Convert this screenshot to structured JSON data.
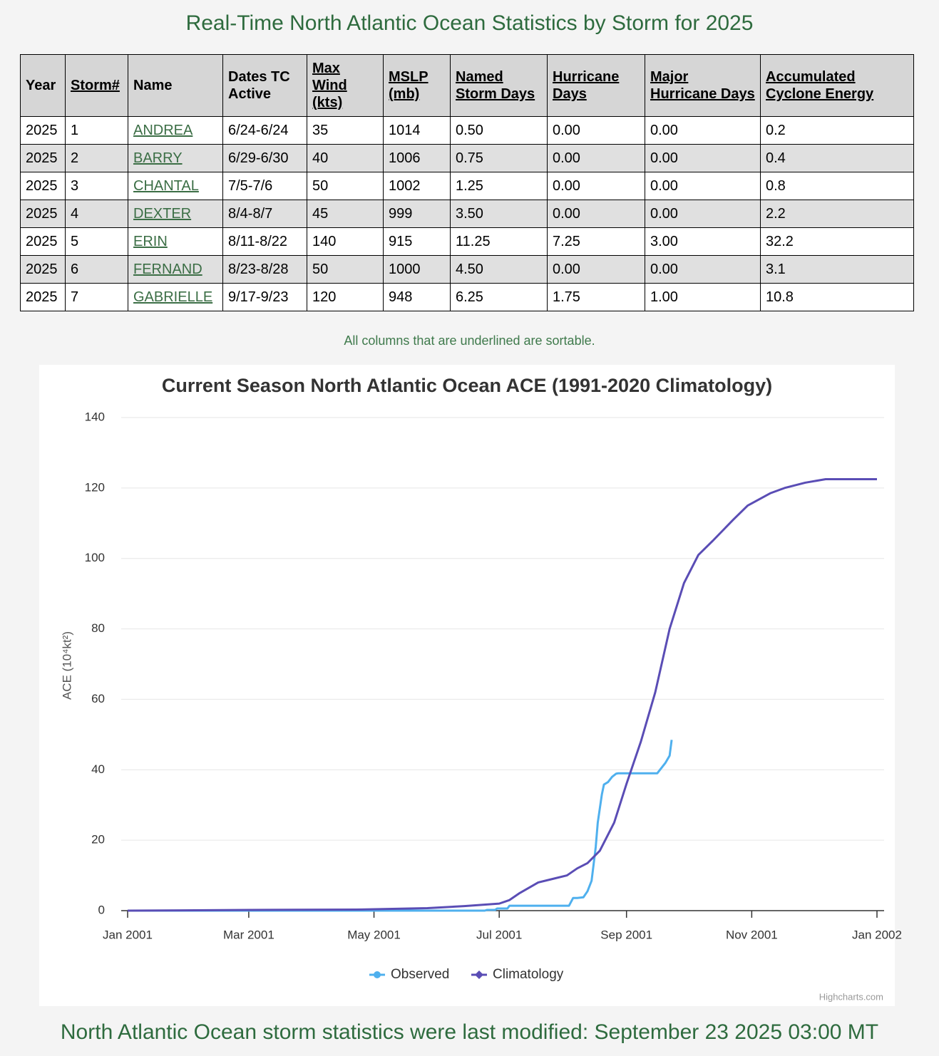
{
  "header": {
    "title": "Real-Time North Atlantic Ocean Statistics by Storm for 2025"
  },
  "table": {
    "columns": [
      "Year",
      "Storm#",
      "Name",
      "Dates TC Active",
      "Max Wind (kts)",
      "MSLP (mb)",
      "Named Storm Days",
      "Hurricane Days",
      "Major Hurricane Days",
      "Accumulated Cyclone Energy"
    ],
    "rows": [
      [
        "2025",
        "1",
        "ANDREA",
        "6/24-6/24",
        "35",
        "1014",
        "0.50",
        "0.00",
        "0.00",
        "0.2"
      ],
      [
        "2025",
        "2",
        "BARRY",
        "6/29-6/30",
        "40",
        "1006",
        "0.75",
        "0.00",
        "0.00",
        "0.4"
      ],
      [
        "2025",
        "3",
        "CHANTAL",
        "7/5-7/6",
        "50",
        "1002",
        "1.25",
        "0.00",
        "0.00",
        "0.8"
      ],
      [
        "2025",
        "4",
        "DEXTER",
        "8/4-8/7",
        "45",
        "999",
        "3.50",
        "0.00",
        "0.00",
        "2.2"
      ],
      [
        "2025",
        "5",
        "ERIN",
        "8/11-8/22",
        "140",
        "915",
        "11.25",
        "7.25",
        "3.00",
        "32.2"
      ],
      [
        "2025",
        "6",
        "FERNAND",
        "8/23-8/28",
        "50",
        "1000",
        "4.50",
        "0.00",
        "0.00",
        "3.1"
      ],
      [
        "2025",
        "7",
        "GABRIELLE",
        "9/17-9/23",
        "120",
        "948",
        "6.25",
        "1.75",
        "1.00",
        "10.8"
      ]
    ]
  },
  "note": "All columns that are underlined are sortable.",
  "chart_data": {
    "type": "line",
    "title": "Current Season North Atlantic Ocean ACE (1991-2020 Climatology)",
    "y_label": "ACE (10⁴kt²)",
    "xlim": [
      0,
      365
    ],
    "xticks": [
      {
        "value": 0,
        "label": "Jan 2001"
      },
      {
        "value": 59,
        "label": "Mar 2001"
      },
      {
        "value": 120,
        "label": "May 2001"
      },
      {
        "value": 181,
        "label": "Jul 2001"
      },
      {
        "value": 243,
        "label": "Sep 2001"
      },
      {
        "value": 304,
        "label": "Nov 2001"
      },
      {
        "value": 365,
        "label": "Jan 2002"
      }
    ],
    "ylim": [
      0,
      140
    ],
    "yticks": [
      0,
      20,
      40,
      60,
      80,
      100,
      120,
      140
    ],
    "grid": true,
    "legend": "bottom",
    "series": [
      {
        "name": "Observed",
        "color": "#4fb0ee",
        "x": [
          0,
          174,
          175,
          179,
          180,
          185,
          186,
          215,
          217,
          219,
          222,
          224,
          226,
          228,
          229,
          231,
          232,
          234,
          236,
          238,
          239,
          258,
          260,
          262,
          264,
          265
        ],
        "values": [
          0,
          0,
          0.2,
          0.2,
          0.6,
          0.6,
          1.4,
          1.4,
          3.6,
          3.6,
          3.8,
          5.5,
          8.5,
          18,
          25,
          33,
          35.8,
          36.5,
          38,
          38.9,
          39,
          39,
          40.5,
          42,
          44,
          48.5
        ]
      },
      {
        "name": "Climatology",
        "color": "#5a4db5",
        "x": [
          0,
          60,
          111,
          146,
          164,
          181,
          186,
          191,
          200,
          207,
          214,
          219,
          224,
          230,
          237,
          243,
          250,
          257,
          264,
          271,
          278,
          285,
          295,
          302,
          313,
          320,
          330,
          340,
          365
        ],
        "values": [
          0,
          0.2,
          0.3,
          0.7,
          1.3,
          2.0,
          3.0,
          5.0,
          8.0,
          9.0,
          10.0,
          12.0,
          13.5,
          17.0,
          25.0,
          36.0,
          48.0,
          62.0,
          80.0,
          93.0,
          101.0,
          105.0,
          111.0,
          115.0,
          118.5,
          120.0,
          121.5,
          122.5,
          122.5
        ]
      }
    ],
    "credit": "Highcharts.com"
  },
  "footer": "North Atlantic Ocean storm statistics were last modified: September 23 2025 03:00 MT"
}
